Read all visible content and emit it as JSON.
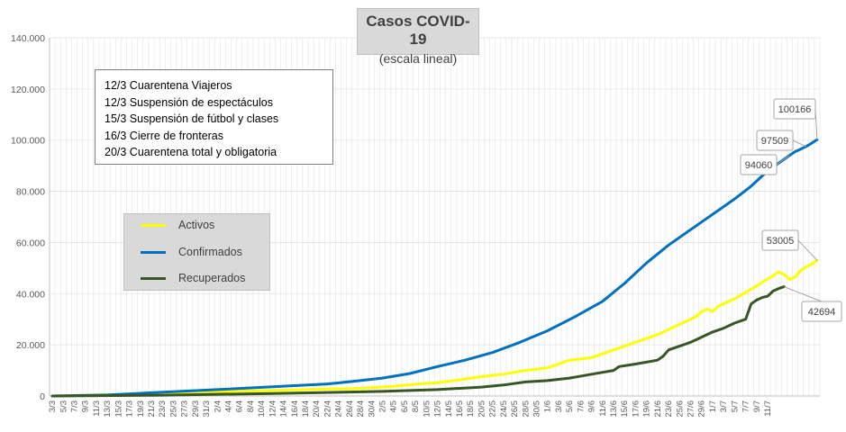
{
  "chart_data": {
    "type": "line",
    "title": "Casos  COVID-19",
    "subtitle": "(escala lineal)",
    "xlabel": "",
    "ylabel": "",
    "ylim": [
      0,
      140000
    ],
    "y_ticks": [
      "0",
      "20.000",
      "40.000",
      "60.000",
      "80.000",
      "100.000",
      "120.000",
      "140.000"
    ],
    "x_tick_labels": [
      "3/3",
      "5/3",
      "7/3",
      "9/3",
      "11/3",
      "13/3",
      "15/3",
      "17/3",
      "19/3",
      "21/3",
      "23/3",
      "25/3",
      "27/3",
      "29/3",
      "31/3",
      "2/4",
      "4/4",
      "6/4",
      "8/4",
      "10/4",
      "12/4",
      "14/4",
      "16/4",
      "18/4",
      "20/4",
      "22/4",
      "24/4",
      "26/4",
      "28/4",
      "30/4",
      "2/5",
      "4/5",
      "6/5",
      "8/5",
      "10/5",
      "12/5",
      "14/5",
      "16/5",
      "18/5",
      "20/5",
      "22/5",
      "24/5",
      "26/5",
      "28/5",
      "30/5",
      "1/6",
      "3/6",
      "5/6",
      "7/6",
      "9/6",
      "11/6",
      "13/6",
      "15/6",
      "17/6",
      "19/6",
      "21/6",
      "23/6",
      "25/6",
      "27/6",
      "29/6",
      "1/7",
      "3/7",
      "5/7",
      "7/7",
      "9/7",
      "11/7"
    ],
    "grid": true,
    "legend_position": "left-center",
    "series": [
      {
        "name": "Activos",
        "color": "#ffff00",
        "points": [
          [
            0,
            1
          ],
          [
            14,
            700
          ],
          [
            28,
            1500
          ],
          [
            42,
            2300
          ],
          [
            56,
            3000
          ],
          [
            62,
            3800
          ],
          [
            66,
            4600
          ],
          [
            70,
            5200
          ],
          [
            74,
            6300
          ],
          [
            78,
            7600
          ],
          [
            82,
            8500
          ],
          [
            86,
            10000
          ],
          [
            90,
            11000
          ],
          [
            92,
            12500
          ],
          [
            94,
            14000
          ],
          [
            98,
            15000
          ],
          [
            102,
            18000
          ],
          [
            106,
            21000
          ],
          [
            110,
            24000
          ],
          [
            114,
            28000
          ],
          [
            117,
            31000
          ],
          [
            118,
            33000
          ],
          [
            119,
            34000
          ],
          [
            120,
            33000
          ],
          [
            121,
            35000
          ],
          [
            124,
            38000
          ],
          [
            126,
            40500
          ],
          [
            128,
            43000
          ],
          [
            129,
            44500
          ],
          [
            131,
            47000
          ],
          [
            132,
            48500
          ],
          [
            133,
            47500
          ],
          [
            134,
            45500
          ],
          [
            135,
            46500
          ],
          [
            136,
            49000
          ],
          [
            137,
            50500
          ],
          [
            138,
            51500
          ],
          [
            139,
            53005
          ]
        ]
      },
      {
        "name": "Confirmados",
        "color": "#0070c0",
        "points": [
          [
            0,
            1
          ],
          [
            10,
            400
          ],
          [
            20,
            1500
          ],
          [
            30,
            2500
          ],
          [
            40,
            3600
          ],
          [
            50,
            4700
          ],
          [
            55,
            5800
          ],
          [
            60,
            7000
          ],
          [
            65,
            8800
          ],
          [
            70,
            11500
          ],
          [
            75,
            14000
          ],
          [
            80,
            17000
          ],
          [
            85,
            21000
          ],
          [
            90,
            25500
          ],
          [
            95,
            31000
          ],
          [
            100,
            37000
          ],
          [
            104,
            44000
          ],
          [
            108,
            52000
          ],
          [
            112,
            59000
          ],
          [
            116,
            65000
          ],
          [
            120,
            71000
          ],
          [
            124,
            77000
          ],
          [
            127,
            82000
          ],
          [
            129,
            86000
          ],
          [
            131,
            89500
          ],
          [
            133,
            92500
          ],
          [
            134,
            94060
          ],
          [
            135,
            95500
          ],
          [
            136,
            96500
          ],
          [
            137,
            97509
          ],
          [
            138,
            98800
          ],
          [
            139,
            100166
          ]
        ]
      },
      {
        "name": "Recuperados",
        "color": "#375623",
        "points": [
          [
            0,
            1
          ],
          [
            20,
            300
          ],
          [
            40,
            1000
          ],
          [
            60,
            1800
          ],
          [
            70,
            2500
          ],
          [
            78,
            3500
          ],
          [
            82,
            4300
          ],
          [
            86,
            5500
          ],
          [
            90,
            6000
          ],
          [
            94,
            7000
          ],
          [
            98,
            8500
          ],
          [
            102,
            10000
          ],
          [
            103,
            11500
          ],
          [
            106,
            12500
          ],
          [
            110,
            14000
          ],
          [
            111,
            15500
          ],
          [
            112,
            18000
          ],
          [
            114,
            19500
          ],
          [
            116,
            21000
          ],
          [
            118,
            23000
          ],
          [
            120,
            25000
          ],
          [
            122,
            26500
          ],
          [
            124,
            28500
          ],
          [
            126,
            30000
          ],
          [
            127,
            36000
          ],
          [
            128,
            37500
          ],
          [
            129,
            38500
          ],
          [
            130,
            39000
          ],
          [
            131,
            41000
          ],
          [
            132,
            42000
          ],
          [
            133,
            42694
          ]
        ]
      }
    ],
    "callouts": [
      {
        "text": "100166",
        "series": "Confirmados",
        "x": 139,
        "y": 100166
      },
      {
        "text": "97509",
        "series": "Confirmados",
        "x": 137,
        "y": 97509
      },
      {
        "text": "94060",
        "series": "Confirmados",
        "x": 134,
        "y": 94060
      },
      {
        "text": "53005",
        "series": "Activos",
        "x": 139,
        "y": 53005
      },
      {
        "text": "42694",
        "series": "Recuperados",
        "x": 133,
        "y": 42694
      }
    ],
    "annotations": [
      "12/3 Cuarentena Viajeros",
      "12/3 Suspensión de espectáculos",
      "15/3 Suspensión de fútbol y clases",
      "16/3 Cierre de fronteras",
      "20/3 Cuarentena total y obligatoria"
    ]
  }
}
